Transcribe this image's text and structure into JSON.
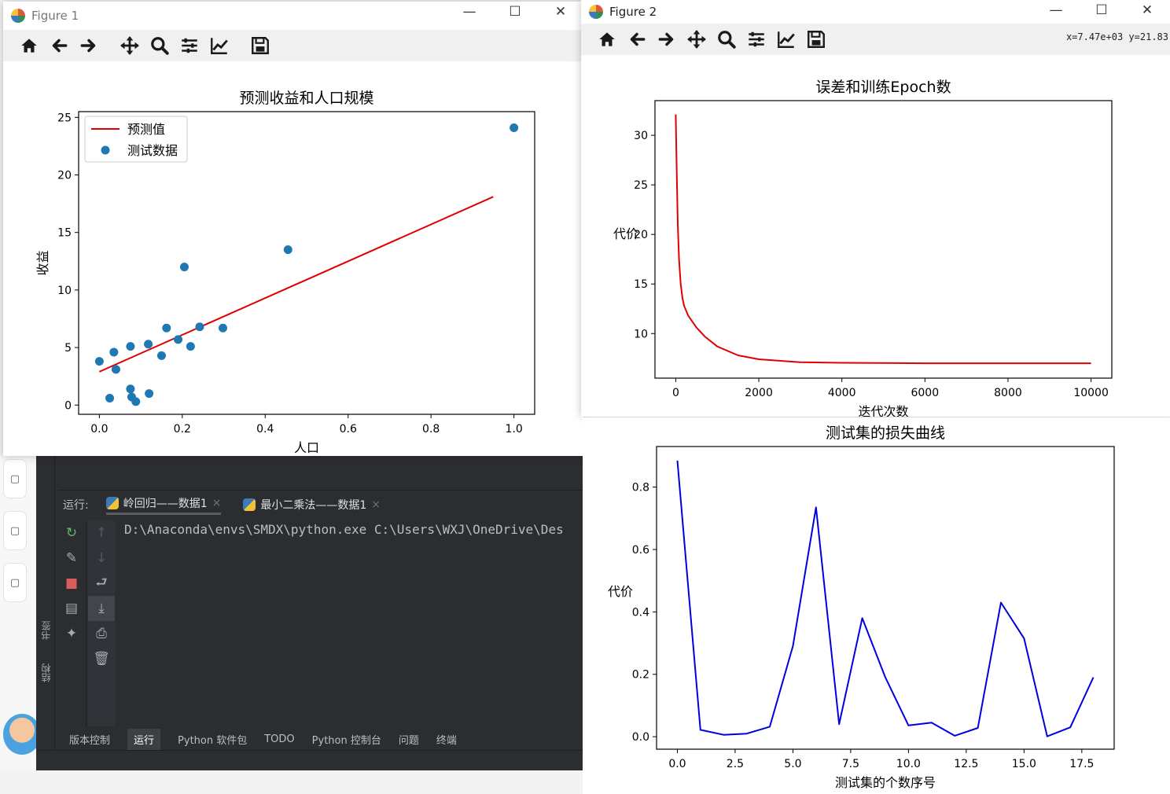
{
  "ide": {
    "run_label": "运行:",
    "run_tabs": [
      "岭回归——数据1",
      "最小二乘法——数据1"
    ],
    "console_line": "D:\\Anaconda\\envs\\SMDX\\python.exe C:\\Users\\WXJ\\OneDrive\\Des",
    "side_labels": [
      "书签",
      "结构"
    ],
    "status_items": [
      "版本控制",
      "运行",
      "Python 软件包",
      "TODO",
      "Python 控制台",
      "问题",
      "终端"
    ]
  },
  "figure1": {
    "title": "Figure 1",
    "window_controls": [
      "—",
      "☐",
      "✕"
    ]
  },
  "figure2": {
    "title": "Figure 2",
    "window_controls": [
      "—",
      "☐",
      "✕"
    ],
    "coords": "x=7.47e+03 y=21.83"
  },
  "toolbar_icons": [
    "home-icon",
    "back-icon",
    "forward-icon",
    "pan-icon",
    "zoom-icon",
    "configure-subplots-icon",
    "edit-axis-icon",
    "save-icon"
  ],
  "colors": {
    "red": "#e00000",
    "blue": "#1f77b4",
    "dark_blue": "#0000e0"
  },
  "chart_data": [
    {
      "type": "scatter",
      "title": "预测收益和人口规模",
      "xlabel": "人口",
      "ylabel": "收益",
      "xlim": [
        -0.05,
        1.05
      ],
      "ylim": [
        -0.8,
        25.5
      ],
      "xticks": [
        0.0,
        0.2,
        0.4,
        0.6,
        0.8,
        1.0
      ],
      "xtick_labels": [
        "0.0",
        "0.2",
        "0.4",
        "0.6",
        "0.8",
        "1.0"
      ],
      "yticks": [
        0,
        5,
        10,
        15,
        20,
        25
      ],
      "ytick_labels": [
        "0",
        "5",
        "10",
        "15",
        "20",
        "25"
      ],
      "legend_position": "upper left",
      "legend": [
        "预测值",
        "测试数据"
      ],
      "line": {
        "name": "预测值",
        "x": [
          0.0,
          0.95
        ],
        "y": [
          2.9,
          18.1
        ]
      },
      "points": {
        "name": "测试数据",
        "x": [
          0.0,
          0.025,
          0.035,
          0.04,
          0.075,
          0.075,
          0.078,
          0.088,
          0.118,
          0.12,
          0.15,
          0.162,
          0.19,
          0.205,
          0.22,
          0.242,
          0.298,
          0.455,
          1.0
        ],
        "y": [
          3.8,
          0.6,
          4.6,
          3.1,
          5.1,
          1.4,
          0.7,
          0.3,
          5.3,
          1.0,
          4.3,
          6.7,
          5.7,
          12.0,
          5.1,
          6.8,
          6.7,
          13.5,
          24.1
        ]
      }
    },
    {
      "type": "line",
      "title": "误差和训练Epoch数",
      "xlabel": "迭代次数",
      "ylabel": "代价",
      "xlim": [
        -500,
        10500
      ],
      "ylim": [
        5.5,
        33.5
      ],
      "xticks": [
        0,
        2000,
        4000,
        6000,
        8000,
        10000
      ],
      "xtick_labels": [
        "0",
        "2000",
        "4000",
        "6000",
        "8000",
        "10000"
      ],
      "yticks": [
        10,
        15,
        20,
        25,
        30
      ],
      "ytick_labels": [
        "10",
        "15",
        "20",
        "25",
        "30"
      ],
      "series": [
        {
          "x": [
            0,
            20,
            50,
            80,
            120,
            160,
            200,
            300,
            400,
            500,
            700,
            1000,
            1500,
            2000,
            3000,
            4000,
            6000,
            8000,
            10000
          ],
          "y": [
            32.1,
            27.0,
            21.0,
            17.5,
            15.0,
            13.6,
            12.8,
            11.8,
            11.2,
            10.6,
            9.7,
            8.7,
            7.8,
            7.4,
            7.1,
            7.05,
            7.0,
            7.0,
            7.0
          ]
        }
      ]
    },
    {
      "type": "line",
      "title": "测试集的损失曲线",
      "xlabel": "测试集的个数序号",
      "ylabel": "代价",
      "xlim": [
        -0.9,
        18.9
      ],
      "ylim": [
        -0.04,
        0.93
      ],
      "xticks": [
        0.0,
        2.5,
        5.0,
        7.5,
        10.0,
        12.5,
        15.0,
        17.5
      ],
      "xtick_labels": [
        "0.0",
        "2.5",
        "5.0",
        "7.5",
        "10.0",
        "12.5",
        "15.0",
        "17.5"
      ],
      "yticks": [
        0.0,
        0.2,
        0.4,
        0.6,
        0.8
      ],
      "ytick_labels": [
        "0.0",
        "0.2",
        "0.4",
        "0.6",
        "0.8"
      ],
      "series": [
        {
          "x": [
            0,
            1,
            2,
            3,
            4,
            5,
            6,
            7,
            8,
            9,
            10,
            11,
            12,
            13,
            14,
            15,
            16,
            17,
            18
          ],
          "y": [
            0.885,
            0.022,
            0.006,
            0.01,
            0.032,
            0.29,
            0.735,
            0.04,
            0.38,
            0.19,
            0.036,
            0.045,
            0.003,
            0.028,
            0.43,
            0.315,
            0.001,
            0.03,
            0.19
          ]
        }
      ]
    }
  ]
}
